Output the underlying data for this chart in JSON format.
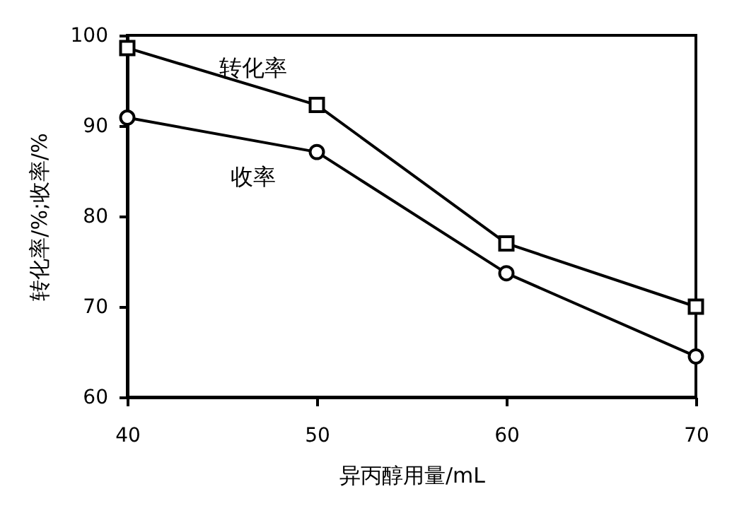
{
  "chart_data": {
    "type": "line",
    "xlabel": "异丙醇用量/mL",
    "ylabel": "转化率/%;收率/%",
    "x": [
      40,
      50,
      60,
      70
    ],
    "series": [
      {
        "name": "转化率",
        "color": "#000000",
        "marker": "square",
        "values": [
          98.6,
          92.3,
          77.0,
          70.0
        ]
      },
      {
        "name": "收率",
        "color": "#000000",
        "marker": "circle",
        "values": [
          90.9,
          87.1,
          73.7,
          64.5
        ]
      }
    ],
    "xlim": [
      40,
      70
    ],
    "xticks": [
      40,
      50,
      60,
      70
    ],
    "ylim": [
      60,
      100
    ],
    "yticks": [
      60,
      70,
      80,
      90,
      100
    ],
    "grid": false,
    "legend": false,
    "line_style": "solid"
  }
}
